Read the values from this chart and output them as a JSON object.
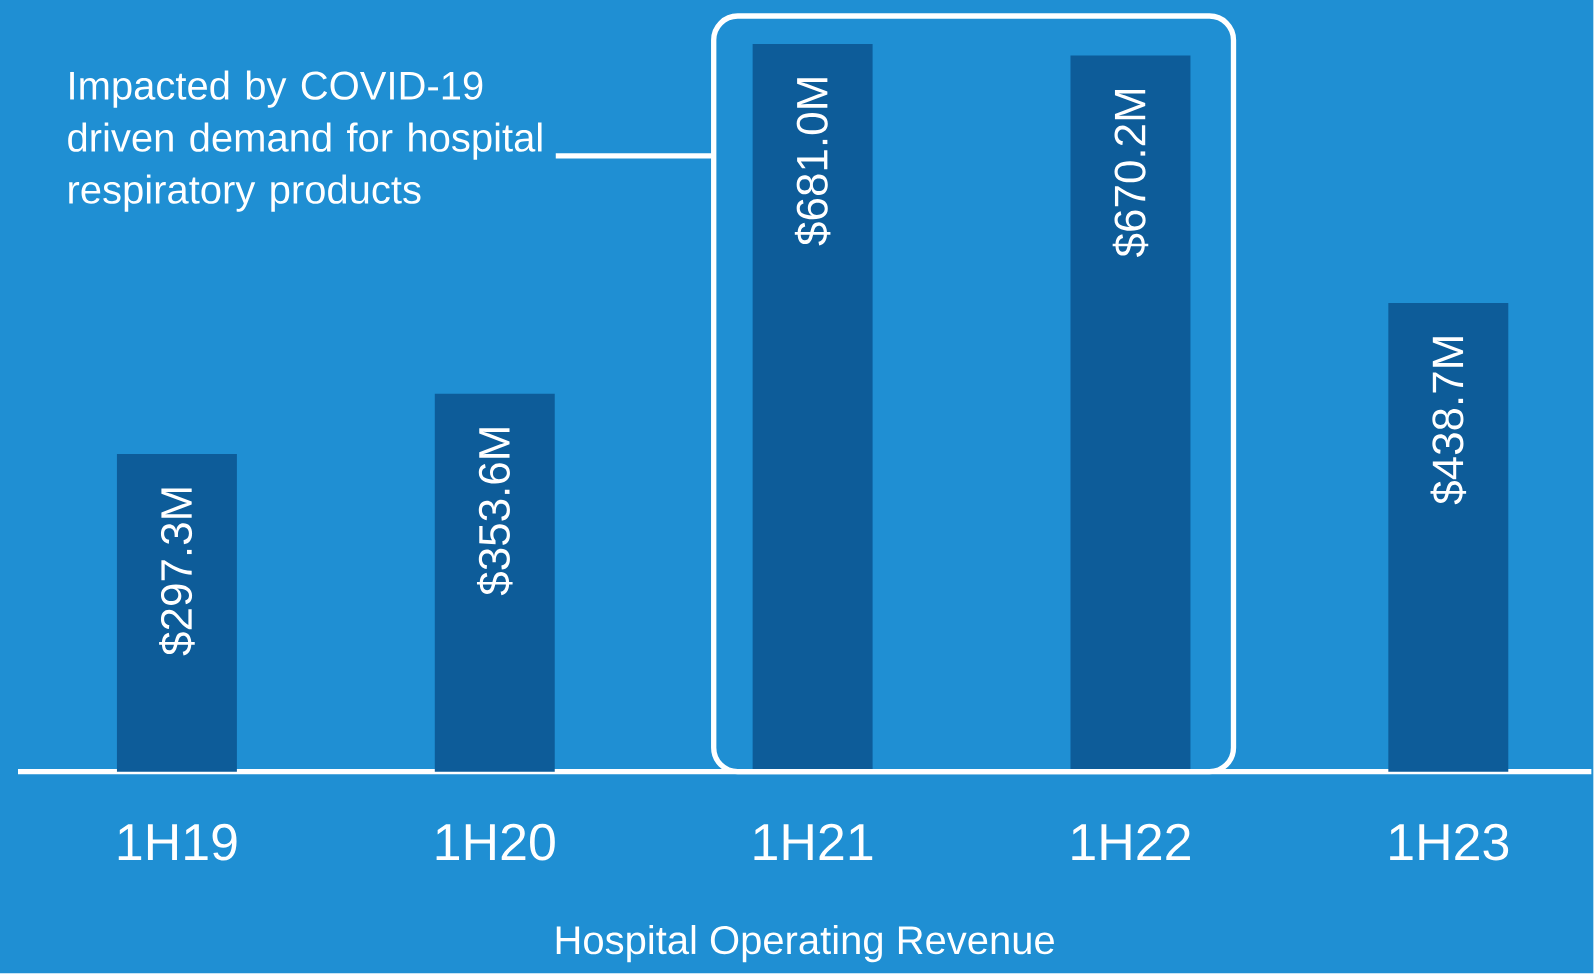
{
  "chart_data": {
    "type": "bar",
    "categories": [
      "1H19",
      "1H20",
      "1H21",
      "1H22",
      "1H23"
    ],
    "values": [
      297.3,
      353.6,
      681.0,
      670.2,
      438.7
    ],
    "value_labels": [
      "$297.3M",
      "$353.6M",
      "$681.0M",
      "$670.2M",
      "$438.7M"
    ],
    "color": "#0d5c99",
    "xlabel": "Hospital Operating Revenue",
    "annotations": [
      "Impacted by COVID-19 driven demand for hospital respiratory products"
    ]
  }
}
